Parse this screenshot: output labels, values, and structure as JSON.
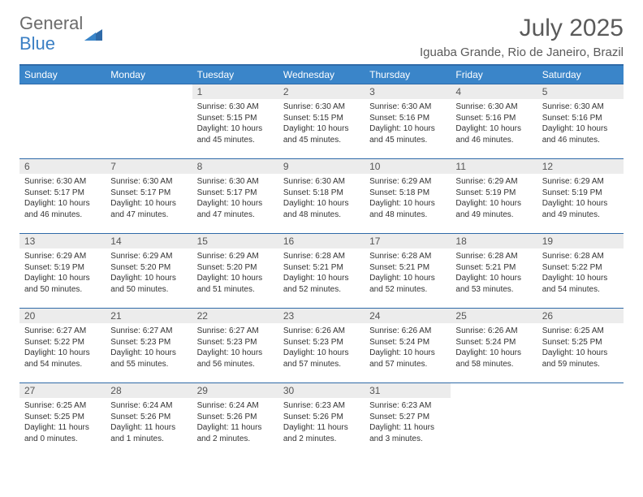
{
  "logo": {
    "text1": "General",
    "text2": "Blue"
  },
  "title": "July 2025",
  "location": "Iguaba Grande, Rio de Janeiro, Brazil",
  "day_headers": [
    "Sunday",
    "Monday",
    "Tuesday",
    "Wednesday",
    "Thursday",
    "Friday",
    "Saturday"
  ],
  "colors": {
    "header_bg": "#3a85c9",
    "header_text": "#ffffff",
    "daynum_bg": "#ececec",
    "border": "#2f6aa8",
    "text": "#333333",
    "logo_gray": "#6b6b6b",
    "logo_blue": "#3a7fc4"
  },
  "weeks": [
    [
      null,
      null,
      {
        "n": "1",
        "sr": "6:30 AM",
        "ss": "5:15 PM",
        "dh": "10",
        "dm": "45"
      },
      {
        "n": "2",
        "sr": "6:30 AM",
        "ss": "5:15 PM",
        "dh": "10",
        "dm": "45"
      },
      {
        "n": "3",
        "sr": "6:30 AM",
        "ss": "5:16 PM",
        "dh": "10",
        "dm": "45"
      },
      {
        "n": "4",
        "sr": "6:30 AM",
        "ss": "5:16 PM",
        "dh": "10",
        "dm": "46"
      },
      {
        "n": "5",
        "sr": "6:30 AM",
        "ss": "5:16 PM",
        "dh": "10",
        "dm": "46"
      }
    ],
    [
      {
        "n": "6",
        "sr": "6:30 AM",
        "ss": "5:17 PM",
        "dh": "10",
        "dm": "46"
      },
      {
        "n": "7",
        "sr": "6:30 AM",
        "ss": "5:17 PM",
        "dh": "10",
        "dm": "47"
      },
      {
        "n": "8",
        "sr": "6:30 AM",
        "ss": "5:17 PM",
        "dh": "10",
        "dm": "47"
      },
      {
        "n": "9",
        "sr": "6:30 AM",
        "ss": "5:18 PM",
        "dh": "10",
        "dm": "48"
      },
      {
        "n": "10",
        "sr": "6:29 AM",
        "ss": "5:18 PM",
        "dh": "10",
        "dm": "48"
      },
      {
        "n": "11",
        "sr": "6:29 AM",
        "ss": "5:19 PM",
        "dh": "10",
        "dm": "49"
      },
      {
        "n": "12",
        "sr": "6:29 AM",
        "ss": "5:19 PM",
        "dh": "10",
        "dm": "49"
      }
    ],
    [
      {
        "n": "13",
        "sr": "6:29 AM",
        "ss": "5:19 PM",
        "dh": "10",
        "dm": "50"
      },
      {
        "n": "14",
        "sr": "6:29 AM",
        "ss": "5:20 PM",
        "dh": "10",
        "dm": "50"
      },
      {
        "n": "15",
        "sr": "6:29 AM",
        "ss": "5:20 PM",
        "dh": "10",
        "dm": "51"
      },
      {
        "n": "16",
        "sr": "6:28 AM",
        "ss": "5:21 PM",
        "dh": "10",
        "dm": "52"
      },
      {
        "n": "17",
        "sr": "6:28 AM",
        "ss": "5:21 PM",
        "dh": "10",
        "dm": "52"
      },
      {
        "n": "18",
        "sr": "6:28 AM",
        "ss": "5:21 PM",
        "dh": "10",
        "dm": "53"
      },
      {
        "n": "19",
        "sr": "6:28 AM",
        "ss": "5:22 PM",
        "dh": "10",
        "dm": "54"
      }
    ],
    [
      {
        "n": "20",
        "sr": "6:27 AM",
        "ss": "5:22 PM",
        "dh": "10",
        "dm": "54"
      },
      {
        "n": "21",
        "sr": "6:27 AM",
        "ss": "5:23 PM",
        "dh": "10",
        "dm": "55"
      },
      {
        "n": "22",
        "sr": "6:27 AM",
        "ss": "5:23 PM",
        "dh": "10",
        "dm": "56"
      },
      {
        "n": "23",
        "sr": "6:26 AM",
        "ss": "5:23 PM",
        "dh": "10",
        "dm": "57"
      },
      {
        "n": "24",
        "sr": "6:26 AM",
        "ss": "5:24 PM",
        "dh": "10",
        "dm": "57"
      },
      {
        "n": "25",
        "sr": "6:26 AM",
        "ss": "5:24 PM",
        "dh": "10",
        "dm": "58"
      },
      {
        "n": "26",
        "sr": "6:25 AM",
        "ss": "5:25 PM",
        "dh": "10",
        "dm": "59"
      }
    ],
    [
      {
        "n": "27",
        "sr": "6:25 AM",
        "ss": "5:25 PM",
        "dh": "11",
        "dm": "0"
      },
      {
        "n": "28",
        "sr": "6:24 AM",
        "ss": "5:26 PM",
        "dh": "11",
        "dm": "1"
      },
      {
        "n": "29",
        "sr": "6:24 AM",
        "ss": "5:26 PM",
        "dh": "11",
        "dm": "2"
      },
      {
        "n": "30",
        "sr": "6:23 AM",
        "ss": "5:26 PM",
        "dh": "11",
        "dm": "2"
      },
      {
        "n": "31",
        "sr": "6:23 AM",
        "ss": "5:27 PM",
        "dh": "11",
        "dm": "3"
      },
      null,
      null
    ]
  ],
  "labels": {
    "sunrise": "Sunrise:",
    "sunset": "Sunset:",
    "daylight": "Daylight:",
    "hours": "hours",
    "and": "and",
    "minutes": "minutes."
  }
}
